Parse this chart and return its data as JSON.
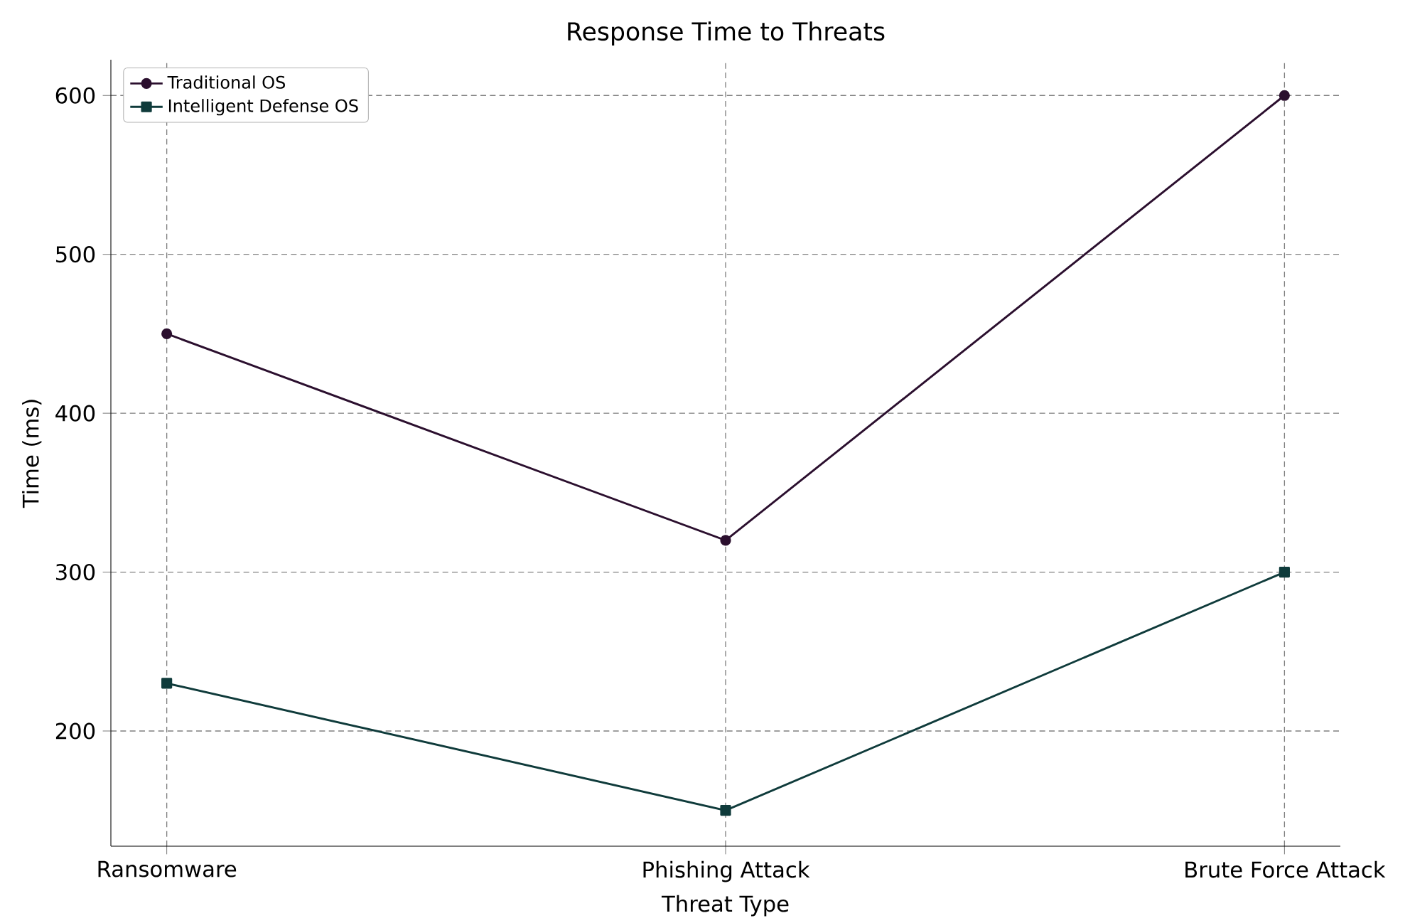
{
  "chart_data": {
    "type": "line",
    "title": "Response Time to Threats",
    "xlabel": "Threat Type",
    "ylabel": "Time (ms)",
    "categories": [
      "Ransomware",
      "Phishing Attack",
      "Brute Force Attack"
    ],
    "series": [
      {
        "name": "Traditional OS",
        "color": "#2b0f2e",
        "marker": "circle",
        "values": [
          450,
          320,
          600
        ]
      },
      {
        "name": "Intelligent Defense OS",
        "color": "#0f3b3b",
        "marker": "square",
        "values": [
          230,
          150,
          300
        ]
      }
    ],
    "ylim": [
      127.5,
      622.5
    ],
    "yticks": [
      200,
      300,
      400,
      500,
      600
    ],
    "grid": true,
    "legend": "top left",
    "line_style": "solid"
  }
}
